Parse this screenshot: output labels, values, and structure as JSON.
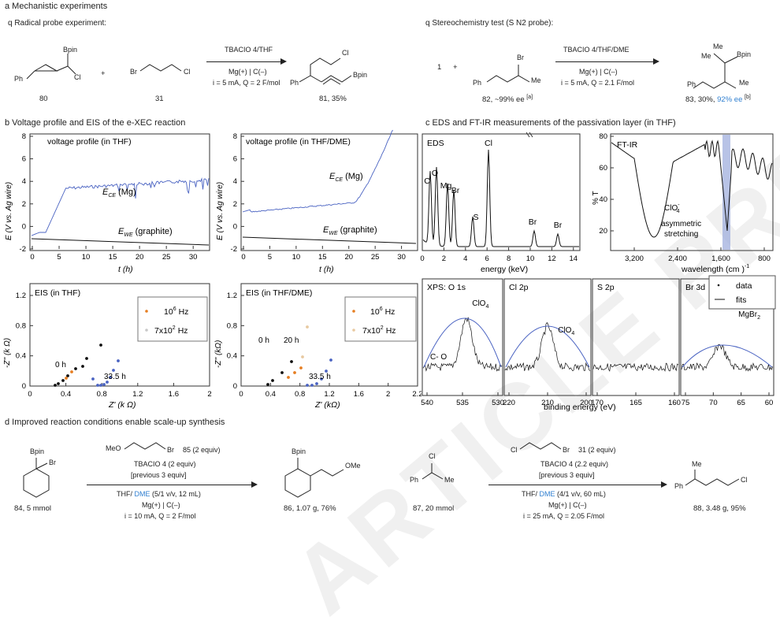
{
  "sections": {
    "a": "a  Mechanistic experiments",
    "b": "b  Voltage profile and EIS of the e-XEC reaction",
    "c": "c  EDS and FT-IR measurements of the passivation layer (in THF)",
    "d": "d  Improved reaction conditions enable scale-up synthesis"
  },
  "a": {
    "left_title": "q  Radical probe experiment:",
    "right_title": "q  Stereochemistry test (S    N2 probe):",
    "left": {
      "bpin": "Bpin",
      "ph": "Ph",
      "cl": "Cl",
      "br": "Br",
      "plus": "+",
      "cond1": "TBACIO   4/THF",
      "cond2": "Mg(+) | C(–)",
      "cond3": "i = 5 mA, Q = 2 F/mol",
      "c80": "80",
      "c31": "31",
      "prod_cl": "Cl",
      "prod_ph": "Ph",
      "prod_bpin": "Bpin",
      "c81": "81, 35%"
    },
    "right": {
      "one": "1",
      "plus": "+",
      "br": "Br",
      "ph": "Ph",
      "me": "Me",
      "c82": "82, ~99% ee",
      "c82_note": "[a]",
      "cond1": "TBACIO   4/THF/DME",
      "cond2": "Mg(+) | C(–)",
      "cond3": "i = 5 mA, Q = 2.1 F/mol",
      "p_me1": "Me",
      "p_me2": "Me",
      "p_bpin": "Bpin",
      "p_ph": "Ph",
      "p_me3": "Me",
      "c83": "83, 30%,",
      "c83_ee": "92% ee",
      "c83_note": "[b]"
    }
  },
  "b": {
    "v1": {
      "title": "voltage profile (in THF)",
      "ece": "E",
      "ece_sub": "CE",
      "ece_tail": "(Mg)",
      "ewe": "E",
      "ewe_sub": "WE",
      "ewe_tail": "(graphite)",
      "ylabel": "E (V vs. Ag wire)",
      "xlabel": "t (h)",
      "yticks": [
        "8",
        "6",
        "4",
        "2",
        "0",
        "-2"
      ],
      "xticks": [
        "0",
        "5",
        "10",
        "15",
        "20",
        "25",
        "30"
      ]
    },
    "v2": {
      "title": "voltage profile (in THF/DME)",
      "ece": "E",
      "ece_sub": "CE",
      "ece_tail": "(Mg)",
      "ewe": "E",
      "ewe_sub": "WE",
      "ewe_tail": "(graphite)",
      "ylabel": "E (V vs. Ag wire)",
      "xlabel": "t (h)",
      "yticks": [
        "8",
        "6",
        "4",
        "2",
        "0",
        "-2"
      ],
      "xticks": [
        "0",
        "5",
        "10",
        "15",
        "20",
        "25",
        "30"
      ]
    },
    "e1": {
      "title": "EIS (in THF)",
      "ylabel": "-Z'' (k Ω)",
      "xlabel": "Z' (k Ω)",
      "legend1": "10  Hz",
      "legend1_sup": "6",
      "legend2": "7x10  Hz",
      "legend2_sup": "2",
      "t0": "0 h",
      "t1": "33.5 h",
      "yticks": [
        "1.2",
        "0.8",
        "0.4",
        "0"
      ],
      "xticks": [
        "0",
        "0.4",
        "0.8",
        "1.2",
        "1.6",
        "2"
      ]
    },
    "e2": {
      "title": "EIS (in THF/DME)",
      "ylabel": "-Z'' (kΩ)",
      "xlabel": "Z' (kΩ)",
      "legend1": "10  Hz",
      "legend1_sup": "6",
      "legend2": "7x10  Hz",
      "legend2_sup": "2",
      "t0": "0 h",
      "t1": "20 h",
      "t2": "33.5 h",
      "yticks": [
        "1.2",
        "0.8",
        "0.4",
        "0"
      ],
      "xticks": [
        "0",
        "0.4",
        "0.8",
        "1.2",
        "1.6",
        "2",
        "2.2"
      ]
    }
  },
  "c": {
    "eds": {
      "title": "EDS",
      "xlabel": "energy (keV)",
      "xticks": [
        "0",
        "2",
        "4",
        "6",
        "8",
        "10",
        "12",
        "14"
      ],
      "peaks": [
        "C",
        "O",
        "Mg",
        "Br",
        "S",
        "Cl",
        "Br",
        "Br"
      ]
    },
    "ftir": {
      "title": "FT-IR",
      "ylabel": "% T",
      "xlabel": "wavelength (cm  )",
      "xlabel_sup": "-1",
      "yticks": [
        "80",
        "60",
        "40",
        "20"
      ],
      "xticks": [
        "3,200",
        "2,400",
        "1,600",
        "800"
      ],
      "ann1": "ClO",
      "ann1_sup": "-",
      "ann1_sub": "4",
      "ann2": "asymmetric",
      "ann3": "stretching"
    },
    "xps": {
      "xlabel": "binding energy (eV)",
      "panels": [
        {
          "title": "XPS:  O 1s",
          "ann1": "ClO",
          "ann1_sub": "4",
          "ann2": "C- O",
          "xticks": [
            "540",
            "535",
            "530"
          ]
        },
        {
          "title": "Cl 2p",
          "ann1": "ClO",
          "ann1_sub": "4",
          "xticks": [
            "220",
            "210",
            "200"
          ]
        },
        {
          "title": "S 2p",
          "xticks": [
            "170",
            "165",
            "160"
          ]
        },
        {
          "title": "Br 3d",
          "ann1": "MgBr",
          "ann1_sub": "2",
          "xticks": [
            "75",
            "70",
            "65",
            "60"
          ]
        }
      ],
      "legend_data": "data",
      "legend_fits": "fits"
    }
  },
  "d": {
    "s1": {
      "bpin": "Bpin",
      "br": "Br",
      "label": "84, 5 mmol"
    },
    "r1": {
      "meo": "MeO",
      "br": "Br",
      "reagent": "85 (2 equiv)",
      "salt": "TBACIO   4 (2 equiv)",
      "prev": "[previous 3 equiv]",
      "solv_a": "THF/ ",
      "solv_dme": "DME",
      "solv_b": " (5/1 v/v, 12 mL)",
      "elec": "Mg(+) | C(–)",
      "cur": "i = 10 mA, Q = 2 F/mol"
    },
    "p1": {
      "bpin": "Bpin",
      "ome": "OMe",
      "label": "86, 1.07 g, 76%"
    },
    "s2": {
      "cl": "Cl",
      "ph": "Ph",
      "me": "Me",
      "label": "87, 20 mmol"
    },
    "r2": {
      "cl": "Cl",
      "br": "Br",
      "reagent": "31 (2 equiv)",
      "salt": "TBACIO   4 (2.2 equiv)",
      "prev": "[previous 3 equiv]",
      "solv_a": "THF/ ",
      "solv_dme": "DME",
      "solv_b": " (4/1 v/v, 60 mL)",
      "elec": "Mg(+) | C(–)",
      "cur": "i = 25 mA, Q = 2.05 F/mol"
    },
    "p2": {
      "me": "Me",
      "ph": "Ph",
      "cl": "Cl",
      "label": "88, 3.48 g, 95%"
    }
  },
  "watermark": "ARTICLE PREVIEW",
  "colors": {
    "accent_blue": "#2f7fd0",
    "trace_blue": "#4a63c2",
    "orange": "#e67e22",
    "band": "#9aa9dc"
  }
}
